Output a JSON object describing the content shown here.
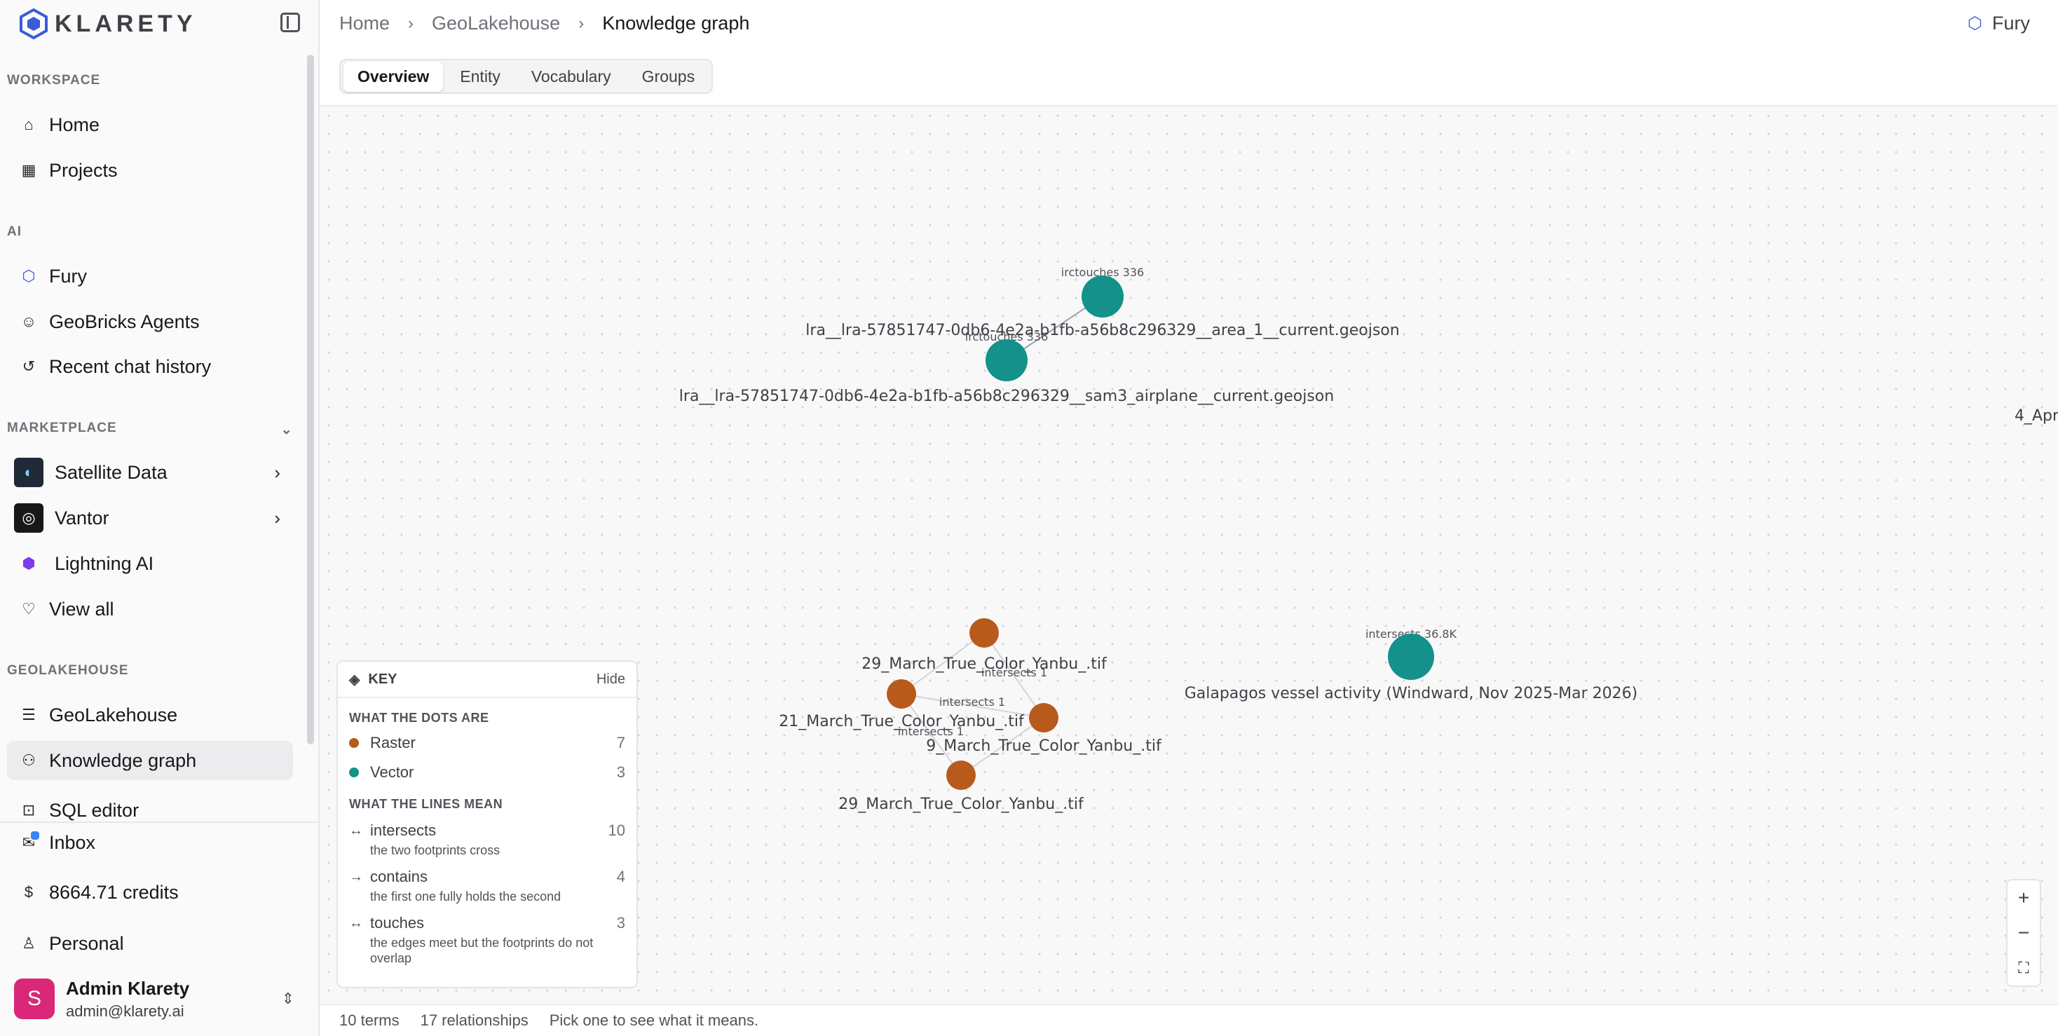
{
  "brand": {
    "name": "KLARETY"
  },
  "sidebar": {
    "sections": {
      "workspace": "WORKSPACE",
      "ai": "AI",
      "marketplace": "MARKETPLACE",
      "geolakehouse": "GEOLAKEHOUSE"
    },
    "workspace_items": [
      {
        "label": "Home",
        "icon": "home-icon"
      },
      {
        "label": "Projects",
        "icon": "grid-icon"
      }
    ],
    "ai_items": [
      {
        "label": "Fury",
        "icon": "fury-icon"
      },
      {
        "label": "GeoBricks Agents",
        "icon": "robot-icon"
      },
      {
        "label": "Recent chat history",
        "icon": "history-icon"
      }
    ],
    "marketplace_items": [
      {
        "label": "Satellite Data",
        "icon": "satellite-data-icon"
      },
      {
        "label": "Vantor",
        "icon": "vantor-icon"
      },
      {
        "label": "Lightning AI",
        "icon": "lightning-icon"
      },
      {
        "label": "View all",
        "icon": "handshake-icon"
      }
    ],
    "geolakehouse_items": [
      {
        "label": "GeoLakehouse",
        "icon": "database-icon"
      },
      {
        "label": "Knowledge graph",
        "icon": "graph-icon",
        "active": true
      },
      {
        "label": "SQL editor",
        "icon": "terminal-icon"
      }
    ],
    "footer": {
      "inbox": "Inbox",
      "credits": "8664.71 credits",
      "personal": "Personal"
    },
    "user": {
      "initial": "S",
      "name": "Admin Klarety",
      "email": "admin@klarety.ai"
    }
  },
  "header": {
    "breadcrumb": [
      "Home",
      "GeoLakehouse",
      "Knowledge graph"
    ],
    "assistant": "Fury"
  },
  "tabs": [
    "Overview",
    "Entity",
    "Vocabulary",
    "Groups"
  ],
  "colors": {
    "raster": "#b85a1c",
    "vector": "#13918a",
    "accent": "#3b5bdb"
  },
  "graph": {
    "nodes": [
      {
        "id": "v1",
        "type": "vector",
        "label": "lra__lra-57851747-0db6-4e2a-b1fb-a56b8c296329__area_1__current.geojson"
      },
      {
        "id": "v2",
        "type": "vector",
        "label": "lra__lra-57851747-0db6-4e2a-b1fb-a56b8c296329__sam3_airplane__current.geojson"
      },
      {
        "id": "v3",
        "type": "vector",
        "label": "Galapagos vessel activity (Windward, Nov 2025-Mar 2026)"
      },
      {
        "id": "r1",
        "type": "raster",
        "label": "29_March_True_Color_Yanbu_.tif"
      },
      {
        "id": "r2",
        "type": "raster",
        "label": "21_March_True_Color_Yanbu_.tif"
      },
      {
        "id": "r3",
        "type": "raster",
        "label": "9_March_True_Color_Yanbu_.tif"
      },
      {
        "id": "r4",
        "type": "raster",
        "label": "29_March_True_Color_Yanbu_.tif"
      },
      {
        "id": "r5",
        "type": "raster",
        "label": "4_Apr"
      }
    ],
    "edge_labels": {
      "e1": "irctouches 336",
      "e2": "irctouches 336",
      "e3": "intersects 36.8K",
      "e4": "intersects 1",
      "e5": "intersects 1",
      "e6": "intersects 1"
    }
  },
  "key": {
    "title": "KEY",
    "hide": "Hide",
    "dots_title": "WHAT THE DOTS ARE",
    "dots": [
      {
        "label": "Raster",
        "count": "7"
      },
      {
        "label": "Vector",
        "count": "3"
      }
    ],
    "lines_title": "WHAT THE LINES MEAN",
    "lines": [
      {
        "symbol": "↔",
        "label": "intersects",
        "count": "10",
        "desc": "the two footprints cross"
      },
      {
        "symbol": "→",
        "label": "contains",
        "count": "4",
        "desc": "the first one fully holds the second"
      },
      {
        "symbol": "↔",
        "label": "touches",
        "count": "3",
        "desc": "the edges meet but the footprints do not overlap"
      }
    ]
  },
  "zoom": {
    "in": "+",
    "out": "−",
    "fit": "⛶"
  },
  "status": {
    "terms": "10 terms",
    "relationships": "17 relationships",
    "hint": "Pick one to see what it means."
  }
}
